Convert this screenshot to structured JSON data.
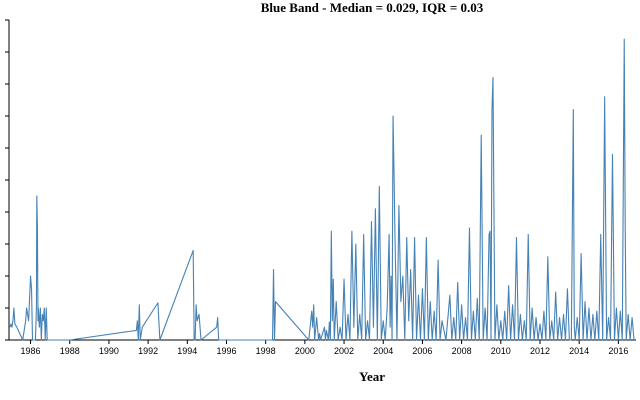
{
  "chart_data": {
    "type": "line",
    "title": "Blue Band - Median = 0.029, IQR = 0.03",
    "xlabel": "Year",
    "ylabel": "",
    "xlim": [
      1984.9,
      2016.9
    ],
    "ylim": [
      0,
      0.5
    ],
    "grid": false,
    "legend": "none",
    "line_color": "#4682b4",
    "x_ticks": [
      1986,
      1988,
      1990,
      1992,
      1994,
      1996,
      1998,
      2000,
      2002,
      2004,
      2006,
      2008,
      2010,
      2012,
      2014,
      2016
    ],
    "x_tick_labels": [
      "1986",
      "1988",
      "1990",
      "1992",
      "1994",
      "1996",
      "1998",
      "2000",
      "2002",
      "2004",
      "2006",
      "2008",
      "2010",
      "2012",
      "2014",
      "2016"
    ],
    "y_ticks": [
      0,
      0.05,
      0.1,
      0.15,
      0.2,
      0.25,
      0.3,
      0.35,
      0.4,
      0.45,
      0.5
    ],
    "series": [
      {
        "x": [
          1984.95,
          1985.0,
          1985.05,
          1985.1,
          1985.15,
          1985.2,
          1985.3,
          1985.45,
          1985.6,
          1985.75,
          1985.8,
          1985.9,
          1986.0,
          1986.05,
          1986.1,
          1986.2,
          1986.25,
          1986.3,
          1986.32,
          1986.35,
          1986.38,
          1986.4,
          1986.45,
          1986.5,
          1986.55,
          1986.6,
          1986.65,
          1986.7,
          1986.75,
          1986.8,
          1986.85,
          1988.0,
          1991.4,
          1991.45,
          1991.5,
          1991.55,
          1991.6,
          1991.7,
          1992.5,
          1992.6,
          1994.3,
          1994.35,
          1994.4,
          1994.45,
          1994.5,
          1994.6,
          1994.7,
          1995.5,
          1995.55,
          1995.6,
          1998.35,
          1998.4,
          1998.45,
          1998.5,
          2000.2,
          2000.3,
          2000.35,
          2000.4,
          2000.45,
          2000.5,
          2000.6,
          2000.7,
          2000.75,
          2000.8,
          2001.0,
          2001.05,
          2001.1,
          2001.2,
          2001.25,
          2001.3,
          2001.35,
          2001.4,
          2001.45,
          2001.5,
          2001.6,
          2001.7,
          2001.8,
          2001.9,
          2002.0,
          2002.1,
          2002.2,
          2002.3,
          2002.4,
          2002.5,
          2002.6,
          2002.7,
          2002.8,
          2002.9,
          2003.0,
          2003.1,
          2003.2,
          2003.3,
          2003.4,
          2003.5,
          2003.6,
          2003.7,
          2003.8,
          2003.9,
          2004.0,
          2004.1,
          2004.2,
          2004.3,
          2004.35,
          2004.4,
          2004.45,
          2004.5,
          2004.55,
          2004.6,
          2004.7,
          2004.8,
          2004.9,
          2005.0,
          2005.1,
          2005.2,
          2005.3,
          2005.4,
          2005.5,
          2005.6,
          2005.7,
          2005.8,
          2005.9,
          2006.0,
          2006.1,
          2006.2,
          2006.3,
          2006.4,
          2006.5,
          2006.6,
          2006.7,
          2006.8,
          2006.9,
          2007.0,
          2007.2,
          2007.4,
          2007.5,
          2007.6,
          2007.7,
          2007.8,
          2007.9,
          2008.0,
          2008.1,
          2008.2,
          2008.3,
          2008.4,
          2008.5,
          2008.6,
          2008.7,
          2008.8,
          2008.9,
          2009.0,
          2009.1,
          2009.2,
          2009.3,
          2009.4,
          2009.45,
          2009.5,
          2009.55,
          2009.6,
          2009.7,
          2009.8,
          2009.9,
          2010.0,
          2010.1,
          2010.2,
          2010.3,
          2010.4,
          2010.5,
          2010.6,
          2010.7,
          2010.8,
          2010.9,
          2011.0,
          2011.1,
          2011.2,
          2011.3,
          2011.4,
          2011.5,
          2011.6,
          2011.7,
          2011.8,
          2011.9,
          2012.0,
          2012.1,
          2012.2,
          2012.3,
          2012.4,
          2012.5,
          2012.6,
          2012.7,
          2012.8,
          2012.9,
          2013.0,
          2013.1,
          2013.2,
          2013.3,
          2013.4,
          2013.5,
          2013.6,
          2013.7,
          2013.75,
          2013.8,
          2013.9,
          2014.0,
          2014.1,
          2014.2,
          2014.3,
          2014.4,
          2014.5,
          2014.6,
          2014.7,
          2014.8,
          2014.9,
          2015.0,
          2015.1,
          2015.2,
          2015.3,
          2015.4,
          2015.5,
          2015.6,
          2015.7,
          2015.8,
          2015.9,
          2016.0,
          2016.1,
          2016.2,
          2016.3,
          2016.35,
          2016.4,
          2016.5,
          2016.6,
          2016.7,
          2016.8
        ],
        "y": [
          0.02,
          0.025,
          0.02,
          0.03,
          0.05,
          0.025,
          0.02,
          0.01,
          0.0,
          0.03,
          0.05,
          0.03,
          0.1,
          0.08,
          0.0,
          0.0,
          0.0,
          0.05,
          0.225,
          0.18,
          0.03,
          0.05,
          0.02,
          0.05,
          0.0,
          0.04,
          0.03,
          0.05,
          0.0,
          0.05,
          0.0,
          0.0,
          0.015,
          0.03,
          0.0,
          0.055,
          0.0,
          0.02,
          0.058,
          0.0,
          0.14,
          0.0,
          0.0,
          0.055,
          0.03,
          0.04,
          0.0,
          0.02,
          0.035,
          0.0,
          0.0,
          0.11,
          0.0,
          0.06,
          0.0,
          0.03,
          0.045,
          0.02,
          0.055,
          0.0,
          0.035,
          0.0,
          0.01,
          0.0,
          0.02,
          0.0,
          0.015,
          0.0,
          0.028,
          0.0,
          0.17,
          0.03,
          0.095,
          0.0,
          0.06,
          0.0,
          0.02,
          0.0,
          0.095,
          0.0,
          0.04,
          0.0,
          0.17,
          0.02,
          0.15,
          0.0,
          0.04,
          0.0,
          0.165,
          0.0,
          0.03,
          0.0,
          0.185,
          0.02,
          0.205,
          0.0,
          0.24,
          0.0,
          0.03,
          0.0,
          0.05,
          0.165,
          0.02,
          0.1,
          0.0,
          0.35,
          0.26,
          0.16,
          0.0,
          0.21,
          0.06,
          0.1,
          0.0,
          0.16,
          0.03,
          0.11,
          0.0,
          0.16,
          0.0,
          0.07,
          0.0,
          0.08,
          0.0,
          0.16,
          0.0,
          0.06,
          0.0,
          0.045,
          0.0,
          0.125,
          0.0,
          0.03,
          0.0,
          0.07,
          0.0,
          0.035,
          0.0,
          0.09,
          0.0,
          0.055,
          0.0,
          0.035,
          0.0,
          0.175,
          0.0,
          0.045,
          0.0,
          0.065,
          0.0,
          0.32,
          0.0,
          0.05,
          0.0,
          0.165,
          0.17,
          0.0,
          0.36,
          0.41,
          0.0,
          0.055,
          0.0,
          0.03,
          0.0,
          0.045,
          0.0,
          0.085,
          0.0,
          0.055,
          0.0,
          0.16,
          0.0,
          0.04,
          0.0,
          0.03,
          0.0,
          0.165,
          0.0,
          0.05,
          0.0,
          0.035,
          0.0,
          0.025,
          0.0,
          0.045,
          0.0,
          0.13,
          0.0,
          0.03,
          0.0,
          0.075,
          0.0,
          0.035,
          0.0,
          0.04,
          0.0,
          0.08,
          0.0,
          0.0,
          0.36,
          0.02,
          0.0,
          0.035,
          0.0,
          0.135,
          0.0,
          0.06,
          0.0,
          0.05,
          0.0,
          0.04,
          0.0,
          0.045,
          0.0,
          0.165,
          0.0,
          0.38,
          0.0,
          0.035,
          0.0,
          0.29,
          0.0,
          0.05,
          0.0,
          0.045,
          0.0,
          0.47,
          0.175,
          0.0,
          0.04,
          0.0,
          0.035,
          0.0
        ]
      }
    ]
  }
}
